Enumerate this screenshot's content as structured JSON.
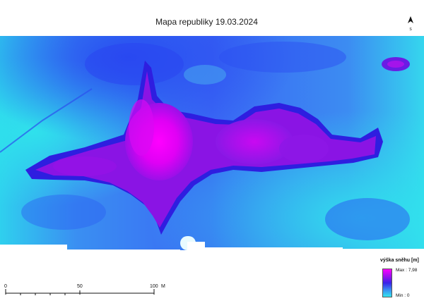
{
  "map": {
    "title": "Mapa republiky 19.03.2024",
    "north_label": "S",
    "colors": {
      "low": "#33ddee",
      "mid": "#2a4df2",
      "high": "#ff00ff",
      "edge": "#1b1bd6"
    }
  },
  "scale": {
    "ticks": [
      "0",
      "50",
      "100"
    ],
    "unit": "M"
  },
  "legend": {
    "title": "výška sněhu [m]",
    "max_label": "Max : 7,98",
    "min_label": "Min : 0"
  }
}
